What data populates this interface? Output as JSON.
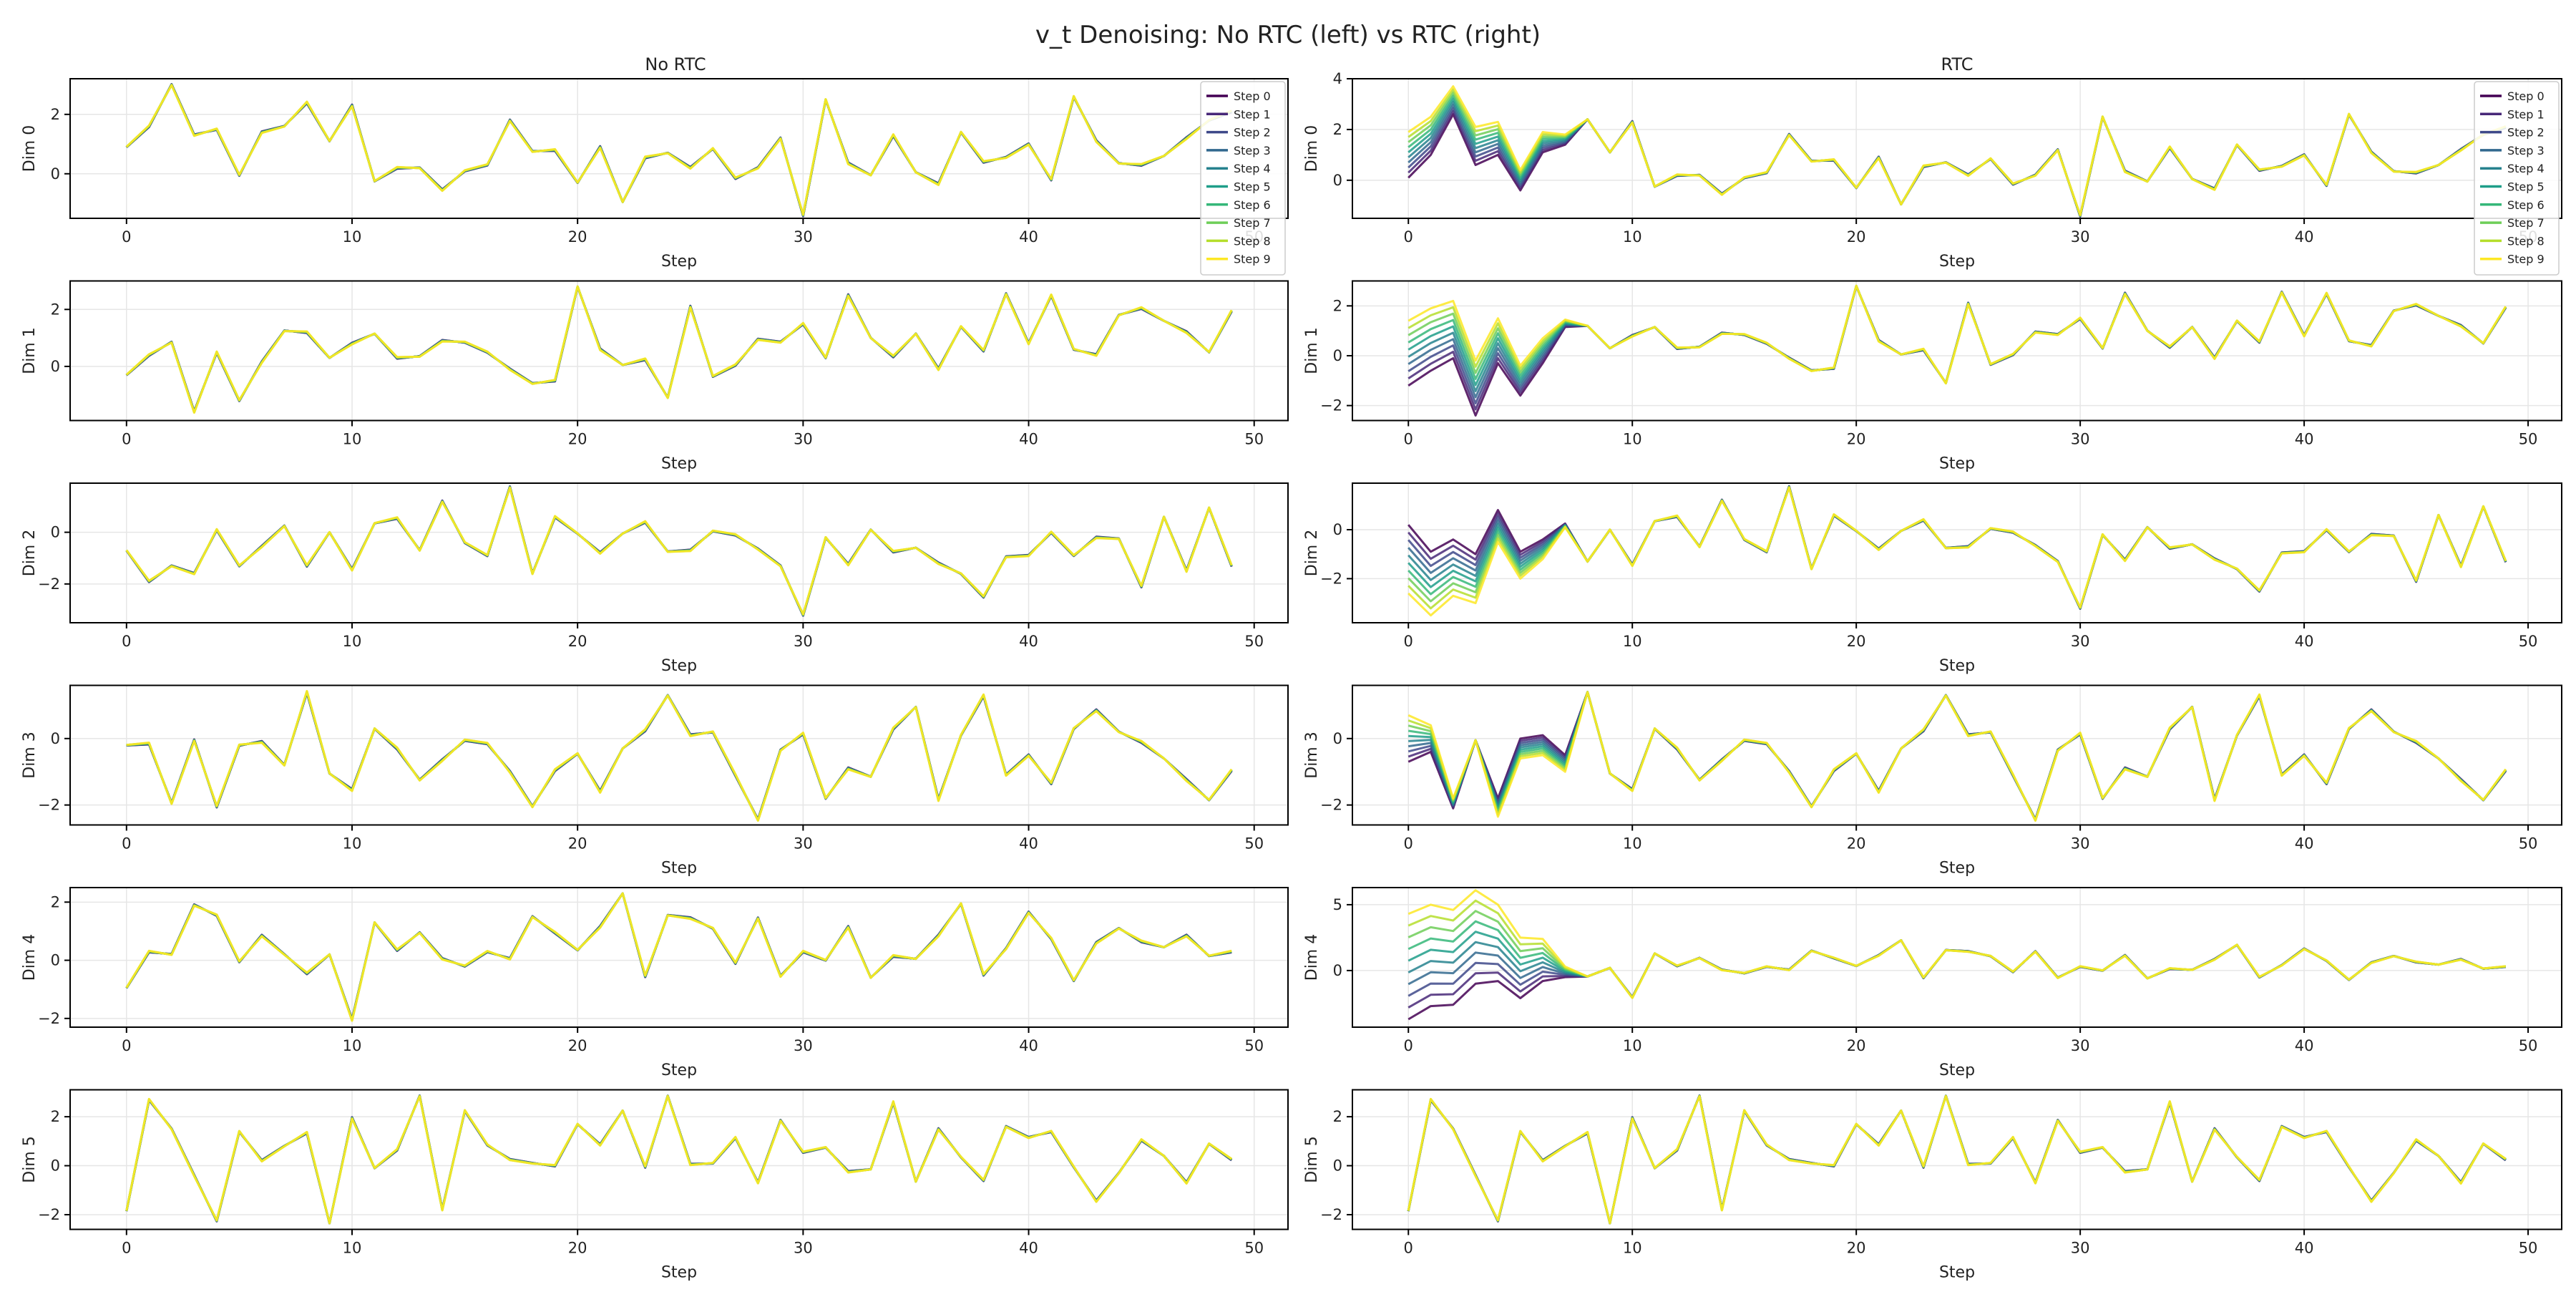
{
  "figure": {
    "title": "v_t Denoising: No RTC (left) vs RTC (right)",
    "xlabel": "Step",
    "column_titles": [
      "No RTC",
      "RTC"
    ],
    "row_labels": [
      "Dim 0",
      "Dim 1",
      "Dim 2",
      "Dim 3",
      "Dim 4",
      "Dim 5"
    ],
    "legend_entries": [
      "Step 0",
      "Step 1",
      "Step 2",
      "Step 3",
      "Step 4",
      "Step 5",
      "Step 6",
      "Step 7",
      "Step 8",
      "Step 9"
    ],
    "legend_placement": "top-right",
    "legend_panels": "Dim 0 only",
    "colormap": "viridis",
    "step_colors": [
      "#440154",
      "#482878",
      "#3e4989",
      "#31688e",
      "#26828e",
      "#1f9e89",
      "#35b779",
      "#6ece58",
      "#b5de2b",
      "#fde725"
    ],
    "grid": true
  },
  "chart_data": {
    "type": "line",
    "x": [
      0,
      1,
      2,
      3,
      4,
      5,
      6,
      7,
      8,
      9,
      10,
      11,
      12,
      13,
      14,
      15,
      16,
      17,
      18,
      19,
      20,
      21,
      22,
      23,
      24,
      25,
      26,
      27,
      28,
      29,
      30,
      31,
      32,
      33,
      34,
      35,
      36,
      37,
      38,
      39,
      40,
      41,
      42,
      43,
      44,
      45,
      46,
      47,
      48,
      49
    ],
    "xticks": [
      0,
      10,
      20,
      30,
      40,
      50
    ],
    "xlim": [
      -2.5,
      51.5
    ],
    "note_series": "Each panel plots 10 series (Step 0 .. Step 9). Series converge after early x; RTC panels differ from No RTC only in the early region described by rtc_start.",
    "panels": [
      {
        "dim": "Dim 0",
        "base": [
          0.9,
          1.6,
          3.0,
          1.3,
          1.5,
          -0.05,
          1.4,
          1.6,
          2.4,
          1.1,
          2.3,
          -0.25,
          0.2,
          0.2,
          -0.55,
          0.1,
          0.3,
          1.8,
          0.75,
          0.8,
          -0.3,
          0.9,
          -0.95,
          0.55,
          0.7,
          0.2,
          0.85,
          -0.15,
          0.2,
          1.2,
          -1.4,
          2.5,
          0.35,
          -0.05,
          1.3,
          0.05,
          -0.35,
          1.4,
          0.4,
          0.55,
          1.0,
          -0.2,
          2.6,
          1.1,
          0.35,
          0.3,
          0.6,
          1.2,
          1.8,
          2.1
        ],
        "ylim_left": [
          -1.5,
          3.2
        ],
        "yticks_left": [
          0,
          2
        ],
        "ylim_right": [
          -1.5,
          4.0
        ],
        "yticks_right": [
          0,
          2,
          4
        ],
        "rtc_start": {
          "step0": [
            0.1,
            1.0,
            2.6,
            0.6,
            1.0,
            -0.4,
            1.1,
            1.4,
            2.4
          ],
          "step9": [
            1.9,
            2.5,
            3.7,
            2.1,
            2.3,
            0.4,
            1.9,
            1.8,
            2.4
          ]
        }
      },
      {
        "dim": "Dim 1",
        "base": [
          -0.3,
          0.4,
          0.85,
          -1.6,
          0.5,
          -1.2,
          0.15,
          1.25,
          1.2,
          0.3,
          0.8,
          1.15,
          0.3,
          0.35,
          0.9,
          0.85,
          0.5,
          -0.1,
          -0.6,
          -0.5,
          2.8,
          0.6,
          0.05,
          0.25,
          -1.1,
          2.1,
          -0.35,
          0.05,
          0.95,
          0.85,
          1.5,
          0.3,
          2.5,
          1.0,
          0.35,
          1.15,
          -0.1,
          1.4,
          0.55,
          2.55,
          0.8,
          2.5,
          0.6,
          0.4,
          1.8,
          2.05,
          1.6,
          1.2,
          0.5,
          1.95
        ],
        "ylim_left": [
          -1.9,
          3.0
        ],
        "yticks_left": [
          0,
          2
        ],
        "ylim_right": [
          -2.6,
          3.0
        ],
        "yticks_right": [
          -2,
          0,
          2
        ],
        "rtc_start": {
          "step0": [
            -1.2,
            -0.6,
            -0.1,
            -2.4,
            -0.3,
            -1.6,
            -0.3,
            1.15,
            1.2
          ],
          "step9": [
            1.4,
            1.9,
            2.2,
            -0.2,
            1.5,
            -0.4,
            0.7,
            1.45,
            1.2
          ]
        }
      },
      {
        "dim": "Dim 2",
        "base": [
          -0.7,
          -1.9,
          -1.3,
          -1.6,
          0.1,
          -1.3,
          -0.55,
          0.25,
          -1.3,
          0.0,
          -1.45,
          0.35,
          0.55,
          -0.7,
          1.2,
          -0.4,
          -0.9,
          1.75,
          -1.6,
          0.6,
          -0.05,
          -0.8,
          -0.05,
          0.4,
          -0.75,
          -0.7,
          0.05,
          -0.1,
          -0.65,
          -1.3,
          -3.2,
          -0.2,
          -1.25,
          0.1,
          -0.75,
          -0.6,
          -1.2,
          -1.6,
          -2.5,
          -0.95,
          -0.9,
          0.0,
          -0.9,
          -0.2,
          -0.25,
          -2.1,
          0.6,
          -1.5,
          0.95,
          -1.3
        ],
        "ylim_left": [
          -3.5,
          1.9
        ],
        "yticks_left": [
          -2,
          0
        ],
        "ylim_right": [
          -3.8,
          1.9
        ],
        "yticks_right": [
          -2,
          0
        ],
        "rtc_start": {
          "step0": [
            0.2,
            -0.9,
            -0.4,
            -1.0,
            0.8,
            -0.9,
            -0.4,
            0.25,
            -1.3
          ],
          "step9": [
            -2.6,
            -3.5,
            -2.7,
            -3.0,
            -0.5,
            -2.0,
            -1.2,
            0.1,
            -1.3
          ]
        }
      },
      {
        "dim": "Dim 3",
        "base": [
          -0.2,
          -0.15,
          -1.95,
          -0.05,
          -2.05,
          -0.2,
          -0.1,
          -0.8,
          1.4,
          -1.05,
          -1.55,
          0.3,
          -0.3,
          -1.25,
          -0.65,
          -0.05,
          -0.15,
          -1.0,
          -2.05,
          -0.95,
          -0.45,
          -1.6,
          -0.3,
          0.25,
          1.3,
          0.1,
          0.2,
          -1.1,
          -2.45,
          -0.35,
          0.15,
          -1.8,
          -0.9,
          -1.15,
          0.3,
          0.95,
          -1.85,
          0.1,
          1.3,
          -1.1,
          -0.5,
          -1.35,
          0.3,
          0.85,
          0.2,
          -0.1,
          -0.6,
          -1.25,
          -1.85,
          -0.95
        ],
        "ylim_left": [
          -2.6,
          1.6
        ],
        "yticks_left": [
          -2,
          0
        ],
        "ylim_right": [
          -2.6,
          1.6
        ],
        "yticks_right": [
          -2,
          0
        ],
        "rtc_start": {
          "step0": [
            -0.7,
            -0.4,
            -2.1,
            -0.05,
            -1.8,
            0.0,
            0.1,
            -0.5,
            1.4
          ],
          "step9": [
            0.7,
            0.4,
            -1.8,
            -0.05,
            -2.35,
            -0.6,
            -0.5,
            -1.0,
            1.4
          ]
        }
      },
      {
        "dim": "Dim 4",
        "base": [
          -0.95,
          0.3,
          0.2,
          1.9,
          1.55,
          -0.05,
          0.85,
          0.2,
          -0.45,
          0.2,
          -2.05,
          1.3,
          0.35,
          0.95,
          0.05,
          -0.2,
          0.3,
          0.05,
          1.5,
          0.95,
          0.35,
          1.15,
          2.3,
          -0.55,
          1.55,
          1.45,
          1.1,
          -0.1,
          1.45,
          -0.55,
          0.3,
          0.0,
          1.15,
          -0.6,
          0.15,
          0.05,
          0.85,
          1.95,
          -0.5,
          0.4,
          1.65,
          0.75,
          -0.7,
          0.6,
          1.1,
          0.65,
          0.45,
          0.85,
          0.15,
          0.3
        ],
        "ylim_left": [
          -2.3,
          2.5
        ],
        "yticks_left": [
          -2,
          0,
          2
        ],
        "ylim_right": [
          -4.3,
          6.3
        ],
        "yticks_right": [
          0,
          5
        ],
        "rtc_start": {
          "step0": [
            -3.7,
            -2.7,
            -2.6,
            -1.0,
            -0.8,
            -2.1,
            -0.8,
            -0.5,
            -0.45
          ],
          "step9": [
            4.3,
            5.0,
            4.6,
            6.1,
            5.0,
            2.5,
            2.4,
            0.3,
            -0.45
          ]
        }
      },
      {
        "dim": "Dim 5",
        "base": [
          -1.85,
          2.7,
          1.5,
          -0.4,
          -2.25,
          1.4,
          0.2,
          0.8,
          1.35,
          -2.35,
          1.95,
          -0.1,
          0.65,
          2.85,
          -1.8,
          2.25,
          0.85,
          0.25,
          0.1,
          0.0,
          1.7,
          0.85,
          2.25,
          -0.05,
          2.85,
          0.05,
          0.1,
          1.15,
          -0.7,
          1.85,
          0.55,
          0.75,
          -0.25,
          -0.15,
          2.6,
          -0.65,
          1.5,
          0.35,
          -0.6,
          1.6,
          1.15,
          1.4,
          -0.05,
          -1.45,
          -0.3,
          1.05,
          0.4,
          -0.7,
          0.9,
          0.25
        ],
        "ylim_left": [
          -2.6,
          3.1
        ],
        "yticks_left": [
          -2,
          0,
          2
        ],
        "ylim_right": [
          -2.6,
          3.1
        ],
        "yticks_right": [
          -2,
          0,
          2
        ],
        "rtc_start": null
      }
    ]
  }
}
